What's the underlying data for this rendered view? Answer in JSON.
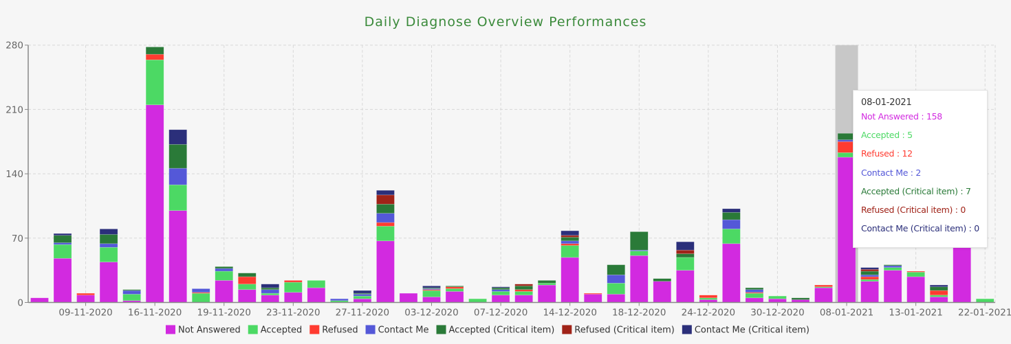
{
  "chart_data": {
    "type": "bar",
    "stacked": true,
    "title": "Daily Diagnose Overview Performances",
    "xlabel": "",
    "ylabel": "",
    "ylim": [
      0,
      280
    ],
    "yticks": [
      "0",
      "70",
      "140",
      "210",
      "280"
    ],
    "grid": true,
    "legend_position": "bottom",
    "xtick_labels": [
      "09-11-2020",
      "16-11-2020",
      "19-11-2020",
      "23-11-2020",
      "27-11-2020",
      "03-12-2020",
      "07-12-2020",
      "14-12-2020",
      "18-12-2020",
      "24-12-2020",
      "30-12-2020",
      "08-01-2021",
      "13-01-2021",
      "22-01-2021"
    ],
    "bar_count": 42,
    "series": [
      {
        "name": "Not Answered",
        "color": "#d22ae0",
        "values": [
          5,
          48,
          8,
          44,
          2,
          215,
          100,
          0,
          24,
          14,
          8,
          11,
          16,
          0,
          4,
          67,
          10,
          6,
          12,
          0,
          8,
          8,
          19,
          49,
          9,
          9,
          51,
          23,
          35,
          3,
          64,
          5,
          4,
          3,
          16,
          158,
          23,
          35,
          28,
          6,
          60,
          0
        ]
      },
      {
        "name": "Accepted",
        "color": "#4cd964",
        "values": [
          0,
          15,
          0,
          16,
          7,
          49,
          28,
          10,
          10,
          6,
          2,
          11,
          8,
          2,
          3,
          16,
          0,
          7,
          3,
          4,
          4,
          4,
          2,
          13,
          0,
          12,
          5,
          0,
          14,
          2,
          16,
          5,
          3,
          0,
          1,
          5,
          2,
          3,
          5,
          2,
          0,
          4
        ]
      },
      {
        "name": "Refused",
        "color": "#ff3b30",
        "values": [
          0,
          0,
          2,
          0,
          0,
          6,
          0,
          1,
          0,
          8,
          0,
          2,
          0,
          0,
          0,
          4,
          0,
          1,
          2,
          0,
          0,
          2,
          0,
          2,
          1,
          0,
          0,
          0,
          0,
          3,
          0,
          1,
          0,
          0,
          2,
          12,
          3,
          0,
          1,
          5,
          0,
          0
        ]
      },
      {
        "name": "Contact Me",
        "color": "#5458d8",
        "values": [
          0,
          2,
          0,
          4,
          4,
          0,
          18,
          4,
          3,
          0,
          4,
          0,
          0,
          2,
          2,
          10,
          0,
          1,
          0,
          0,
          2,
          0,
          0,
          3,
          0,
          9,
          1,
          0,
          0,
          0,
          10,
          3,
          0,
          0,
          0,
          2,
          2,
          2,
          0,
          0,
          0,
          0
        ]
      },
      {
        "name": "Accepted (Critical item)",
        "color": "#2a7a38",
        "values": [
          0,
          8,
          0,
          10,
          1,
          8,
          26,
          0,
          2,
          4,
          2,
          0,
          0,
          0,
          1,
          10,
          0,
          1,
          1,
          0,
          2,
          4,
          3,
          4,
          0,
          11,
          20,
          3,
          4,
          0,
          8,
          2,
          0,
          2,
          0,
          7,
          4,
          1,
          0,
          4,
          0,
          0
        ]
      },
      {
        "name": "Refused (Critical item)",
        "color": "#a02318",
        "values": [
          0,
          0,
          0,
          0,
          0,
          0,
          0,
          0,
          0,
          0,
          0,
          0,
          0,
          0,
          0,
          10,
          0,
          0,
          0,
          0,
          0,
          2,
          0,
          2,
          0,
          0,
          0,
          0,
          4,
          0,
          0,
          0,
          0,
          0,
          0,
          0,
          2,
          0,
          0,
          0,
          0,
          0
        ]
      },
      {
        "name": "Contact Me (Critical item)",
        "color": "#2b2f7a",
        "values": [
          0,
          2,
          0,
          6,
          0,
          0,
          16,
          0,
          0,
          0,
          4,
          0,
          0,
          0,
          3,
          5,
          0,
          2,
          0,
          0,
          1,
          0,
          0,
          5,
          0,
          0,
          0,
          0,
          9,
          0,
          4,
          0,
          0,
          0,
          0,
          0,
          2,
          0,
          0,
          2,
          0,
          0
        ]
      }
    ],
    "highlighted_bar": 36,
    "tooltip": {
      "date": "08-01-2021",
      "rows": [
        {
          "label": "Not Answered",
          "value": "158",
          "color": "#d22ae0"
        },
        {
          "label": "Accepted",
          "value": "5",
          "color": "#4cd964"
        },
        {
          "label": "Refused",
          "value": "12",
          "color": "#ff3b30"
        },
        {
          "label": "Contact Me",
          "value": "2",
          "color": "#5458d8"
        },
        {
          "label": "Accepted (Critical item)",
          "value": "7",
          "color": "#2a7a38"
        },
        {
          "label": "Refused (Critical item)",
          "value": "0",
          "color": "#a02318"
        },
        {
          "label": "Contact Me (Critical item)",
          "value": "0",
          "color": "#2b2f7a"
        }
      ]
    }
  }
}
